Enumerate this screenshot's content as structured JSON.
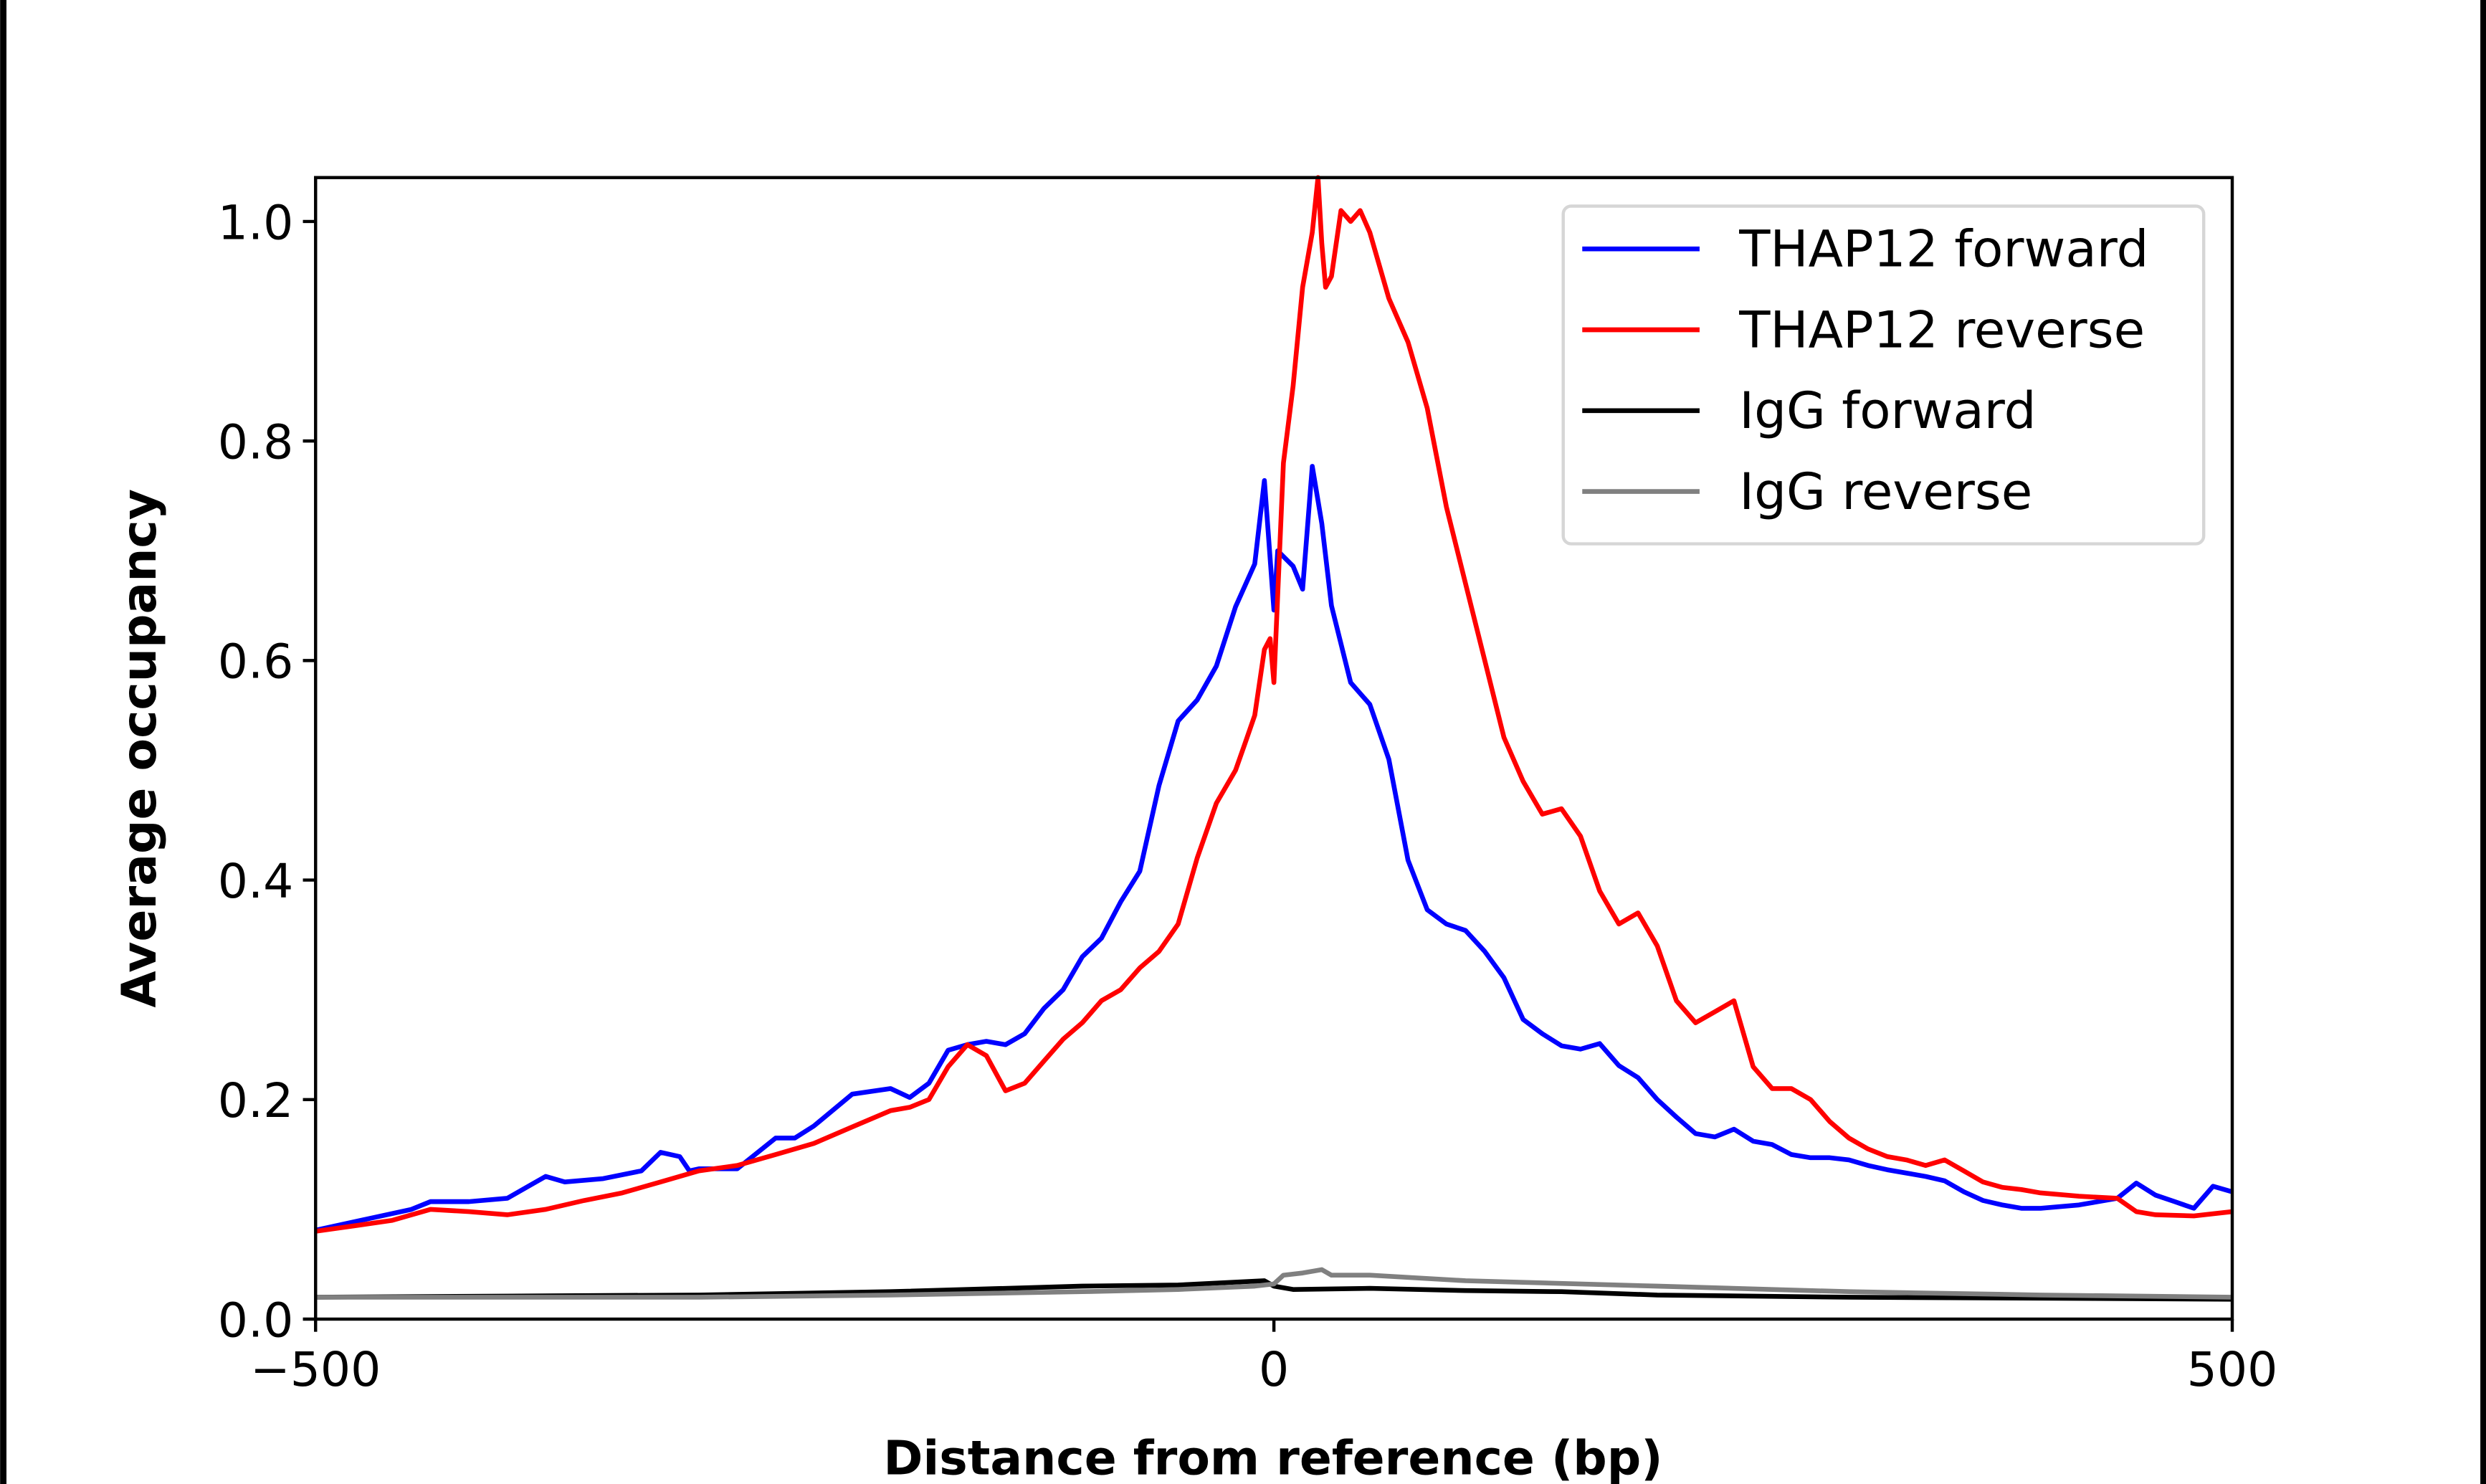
{
  "chart_data": {
    "type": "line",
    "title": "",
    "xlabel": "Distance from reference (bp)",
    "ylabel": "Average occupancy",
    "xlim": [
      -500,
      500
    ],
    "ylim": [
      0,
      1.04
    ],
    "xticks": [
      -500,
      0,
      500
    ],
    "xtick_labels": [
      "−500",
      "0",
      "500"
    ],
    "yticks": [
      0.0,
      0.2,
      0.4,
      0.6,
      0.8,
      1.0
    ],
    "ytick_labels": [
      "0.0",
      "0.2",
      "0.4",
      "0.6",
      "0.8",
      "1.0"
    ],
    "grid": false,
    "legend_position": "top-right",
    "series": [
      {
        "name": "THAP12 forward",
        "color": "#0000ff",
        "x": [
          -500,
          -450,
          -440,
          -420,
          -400,
          -380,
          -370,
          -350,
          -330,
          -320,
          -310,
          -305,
          -300,
          -280,
          -260,
          -250,
          -240,
          -220,
          -200,
          -190,
          -180,
          -170,
          -160,
          -150,
          -140,
          -130,
          -120,
          -110,
          -100,
          -90,
          -80,
          -70,
          -60,
          -50,
          -40,
          -30,
          -20,
          -10,
          -5,
          0,
          2,
          10,
          15,
          20,
          25,
          30,
          40,
          50,
          60,
          70,
          80,
          90,
          100,
          110,
          120,
          130,
          140,
          150,
          160,
          170,
          180,
          190,
          200,
          210,
          220,
          230,
          240,
          250,
          260,
          270,
          280,
          290,
          300,
          310,
          320,
          330,
          340,
          350,
          360,
          370,
          380,
          390,
          400,
          420,
          440,
          450,
          460,
          470,
          480,
          490,
          500
        ],
        "y": [
          0.081,
          0.1,
          0.107,
          0.107,
          0.11,
          0.13,
          0.125,
          0.128,
          0.135,
          0.152,
          0.148,
          0.135,
          0.137,
          0.137,
          0.165,
          0.165,
          0.176,
          0.205,
          0.21,
          0.202,
          0.215,
          0.245,
          0.25,
          0.253,
          0.25,
          0.26,
          0.283,
          0.3,
          0.33,
          0.347,
          0.38,
          0.408,
          0.486,
          0.545,
          0.564,
          0.595,
          0.649,
          0.688,
          0.764,
          0.646,
          0.7,
          0.686,
          0.665,
          0.777,
          0.725,
          0.65,
          0.58,
          0.56,
          0.51,
          0.418,
          0.373,
          0.36,
          0.354,
          0.335,
          0.311,
          0.273,
          0.26,
          0.249,
          0.246,
          0.251,
          0.231,
          0.22,
          0.2,
          0.184,
          0.169,
          0.166,
          0.173,
          0.162,
          0.159,
          0.15,
          0.147,
          0.147,
          0.145,
          0.14,
          0.136,
          0.133,
          0.13,
          0.126,
          0.116,
          0.108,
          0.104,
          0.101,
          0.101,
          0.104,
          0.11,
          0.124,
          0.113,
          0.107,
          0.101,
          0.121,
          0.116
        ]
      },
      {
        "name": "THAP12 reverse",
        "color": "#ff0000",
        "x": [
          -500,
          -480,
          -460,
          -440,
          -420,
          -400,
          -380,
          -360,
          -340,
          -320,
          -300,
          -280,
          -260,
          -240,
          -220,
          -200,
          -190,
          -180,
          -170,
          -160,
          -150,
          -140,
          -130,
          -120,
          -110,
          -100,
          -90,
          -80,
          -70,
          -60,
          -50,
          -40,
          -30,
          -20,
          -15,
          -10,
          -5,
          -2,
          0,
          2,
          5,
          10,
          15,
          20,
          23,
          25,
          27,
          30,
          35,
          40,
          45,
          50,
          60,
          70,
          80,
          90,
          100,
          110,
          120,
          130,
          140,
          150,
          160,
          170,
          180,
          190,
          200,
          210,
          220,
          230,
          240,
          250,
          260,
          270,
          280,
          290,
          300,
          310,
          320,
          330,
          340,
          350,
          360,
          370,
          380,
          390,
          400,
          420,
          440,
          450,
          460,
          480,
          500
        ],
        "y": [
          0.08,
          0.085,
          0.09,
          0.1,
          0.098,
          0.095,
          0.1,
          0.108,
          0.115,
          0.125,
          0.135,
          0.14,
          0.15,
          0.16,
          0.175,
          0.19,
          0.193,
          0.2,
          0.23,
          0.25,
          0.24,
          0.208,
          0.215,
          0.235,
          0.255,
          0.27,
          0.29,
          0.3,
          0.32,
          0.335,
          0.36,
          0.42,
          0.47,
          0.5,
          0.525,
          0.55,
          0.61,
          0.62,
          0.58,
          0.66,
          0.78,
          0.85,
          0.94,
          0.99,
          1.04,
          0.98,
          0.94,
          0.95,
          1.01,
          1.0,
          1.01,
          0.99,
          0.93,
          0.89,
          0.83,
          0.74,
          0.67,
          0.6,
          0.53,
          0.49,
          0.46,
          0.465,
          0.44,
          0.39,
          0.36,
          0.37,
          0.34,
          0.29,
          0.27,
          0.28,
          0.29,
          0.23,
          0.21,
          0.21,
          0.2,
          0.18,
          0.165,
          0.155,
          0.148,
          0.145,
          0.14,
          0.145,
          0.135,
          0.125,
          0.12,
          0.118,
          0.115,
          0.112,
          0.11,
          0.098,
          0.095,
          0.094,
          0.098
        ]
      },
      {
        "name": "IgG forward",
        "color": "#000000",
        "x": [
          -500,
          -400,
          -300,
          -200,
          -100,
          -50,
          -5,
          0,
          10,
          50,
          100,
          150,
          200,
          300,
          400,
          500
        ],
        "y": [
          0.02,
          0.021,
          0.022,
          0.025,
          0.03,
          0.031,
          0.035,
          0.03,
          0.027,
          0.028,
          0.026,
          0.025,
          0.022,
          0.02,
          0.019,
          0.018
        ]
      },
      {
        "name": "IgG reverse",
        "color": "#808080",
        "x": [
          -500,
          -400,
          -300,
          -200,
          -100,
          -50,
          -10,
          0,
          5,
          15,
          25,
          30,
          50,
          100,
          200,
          300,
          400,
          500
        ],
        "y": [
          0.02,
          0.02,
          0.02,
          0.022,
          0.025,
          0.027,
          0.03,
          0.032,
          0.04,
          0.042,
          0.045,
          0.04,
          0.04,
          0.035,
          0.03,
          0.025,
          0.022,
          0.02
        ]
      }
    ]
  }
}
